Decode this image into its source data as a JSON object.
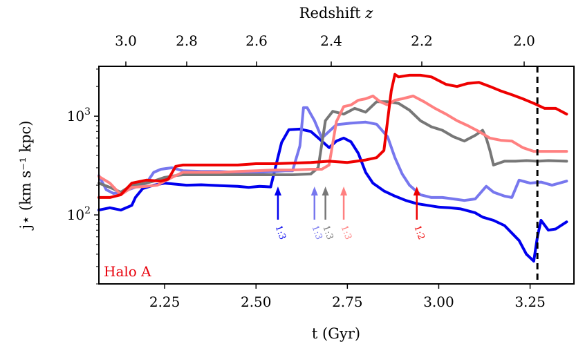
{
  "chart_data": {
    "type": "line",
    "title": "",
    "xlabel": "t (Gyr)",
    "ylabel": "j⋆ (km s⁻¹ kpc)",
    "top_axis_label": "Redshift z",
    "xlim": [
      2.07,
      3.37
    ],
    "ylim": [
      20,
      3200
    ],
    "yscale": "log",
    "x_ticks": [
      2.25,
      2.5,
      2.75,
      3.0,
      3.25
    ],
    "x_tick_labels": [
      "2.25",
      "2.50",
      "2.75",
      "3.00",
      "3.25"
    ],
    "y_ticks": [
      100,
      1000
    ],
    "y_tick_base": "10",
    "y_tick_exponents": [
      "2",
      "3"
    ],
    "top_ticks": [
      {
        "t": 2.105,
        "label": "3.0"
      },
      {
        "t": 2.195,
        "label": "2.8"
      },
      {
        "t": 2.29,
        "label": "2.6"
      },
      {
        "t": 2.395,
        "label": "2.4"
      },
      {
        "t": 2.51,
        "label": "2.2"
      },
      {
        "t": 2.635,
        "label": "2.0"
      }
    ],
    "vline_x": 3.27,
    "halo_label": "Halo A",
    "halo_label_color": "#e8000b",
    "series": [
      {
        "color": "#0000ee",
        "x": [
          2.07,
          2.1,
          2.13,
          2.16,
          2.17,
          2.19,
          2.22,
          2.25,
          2.28,
          2.31,
          2.35,
          2.4,
          2.45,
          2.48,
          2.51,
          2.54,
          2.57,
          2.59,
          2.62,
          2.65,
          2.68,
          2.7,
          2.72,
          2.74,
          2.76,
          2.78,
          2.8,
          2.82,
          2.85,
          2.88,
          2.91,
          2.94,
          2.97,
          3.0,
          3.03,
          3.06,
          3.08,
          3.1,
          3.12,
          3.15,
          3.18,
          3.22,
          3.24,
          3.26,
          3.27,
          3.28,
          3.3,
          3.32,
          3.35
        ],
        "y": [
          112,
          118,
          112,
          125,
          150,
          185,
          200,
          210,
          205,
          200,
          202,
          198,
          195,
          190,
          195,
          192,
          540,
          730,
          740,
          700,
          560,
          480,
          560,
          600,
          550,
          420,
          270,
          210,
          175,
          155,
          140,
          130,
          125,
          120,
          118,
          115,
          110,
          105,
          95,
          88,
          78,
          55,
          40,
          34,
          60,
          88,
          70,
          72,
          85
        ]
      },
      {
        "color": "#7777ee",
        "x": [
          2.07,
          2.09,
          2.11,
          2.13,
          2.16,
          2.2,
          2.22,
          2.24,
          2.27,
          2.3,
          2.35,
          2.4,
          2.45,
          2.5,
          2.55,
          2.58,
          2.6,
          2.62,
          2.63,
          2.64,
          2.66,
          2.68,
          2.72,
          2.76,
          2.8,
          2.83,
          2.86,
          2.88,
          2.9,
          2.92,
          2.95,
          2.98,
          3.01,
          3.04,
          3.07,
          3.1,
          3.13,
          3.15,
          3.18,
          3.2,
          3.22,
          3.25,
          3.28,
          3.31,
          3.35
        ],
        "y": [
          250,
          180,
          165,
          170,
          185,
          210,
          270,
          290,
          300,
          280,
          275,
          275,
          270,
          270,
          275,
          280,
          280,
          500,
          1220,
          1220,
          900,
          600,
          820,
          850,
          870,
          830,
          620,
          380,
          260,
          200,
          160,
          150,
          150,
          145,
          140,
          145,
          195,
          170,
          155,
          150,
          225,
          210,
          215,
          200,
          220
        ]
      },
      {
        "color": "#777777",
        "x": [
          2.07,
          2.1,
          2.13,
          2.16,
          2.2,
          2.22,
          2.25,
          2.28,
          2.3,
          2.35,
          2.4,
          2.45,
          2.5,
          2.55,
          2.6,
          2.65,
          2.67,
          2.69,
          2.71,
          2.74,
          2.77,
          2.8,
          2.83,
          2.86,
          2.89,
          2.92,
          2.95,
          2.98,
          3.01,
          3.04,
          3.07,
          3.1,
          3.12,
          3.13,
          3.14,
          3.15,
          3.18,
          3.21,
          3.24,
          3.27,
          3.3,
          3.35
        ],
        "y": [
          210,
          190,
          170,
          200,
          210,
          220,
          240,
          250,
          255,
          255,
          255,
          255,
          255,
          255,
          255,
          260,
          300,
          900,
          1120,
          1050,
          1200,
          1100,
          1400,
          1400,
          1350,
          1150,
          900,
          780,
          720,
          620,
          560,
          640,
          720,
          600,
          450,
          320,
          350,
          350,
          355,
          350,
          355,
          350
        ]
      },
      {
        "color": "#ff8080",
        "x": [
          2.07,
          2.1,
          2.13,
          2.16,
          2.2,
          2.23,
          2.25,
          2.27,
          2.3,
          2.35,
          2.4,
          2.45,
          2.5,
          2.55,
          2.6,
          2.65,
          2.68,
          2.7,
          2.72,
          2.74,
          2.76,
          2.78,
          2.8,
          2.82,
          2.84,
          2.86,
          2.88,
          2.9,
          2.93,
          2.96,
          2.99,
          3.02,
          3.05,
          3.08,
          3.11,
          3.14,
          3.17,
          3.2,
          3.23,
          3.26,
          3.3,
          3.35
        ],
        "y": [
          245,
          210,
          160,
          190,
          195,
          200,
          220,
          240,
          270,
          270,
          270,
          275,
          280,
          285,
          285,
          290,
          290,
          320,
          880,
          1250,
          1300,
          1450,
          1500,
          1600,
          1400,
          1300,
          1450,
          1500,
          1600,
          1400,
          1200,
          1050,
          900,
          800,
          700,
          600,
          570,
          560,
          480,
          440,
          440,
          440
        ]
      },
      {
        "color": "#ee0000",
        "x": [
          2.07,
          2.1,
          2.13,
          2.16,
          2.2,
          2.24,
          2.26,
          2.28,
          2.3,
          2.35,
          2.4,
          2.45,
          2.5,
          2.55,
          2.6,
          2.65,
          2.7,
          2.75,
          2.8,
          2.83,
          2.85,
          2.87,
          2.88,
          2.89,
          2.92,
          2.95,
          2.98,
          3.02,
          3.05,
          3.08,
          3.11,
          3.14,
          3.17,
          3.2,
          3.23,
          3.26,
          3.29,
          3.32,
          3.35
        ],
        "y": [
          150,
          150,
          160,
          210,
          225,
          220,
          230,
          310,
          320,
          320,
          320,
          320,
          330,
          330,
          335,
          340,
          350,
          340,
          360,
          380,
          450,
          1800,
          2650,
          2500,
          2600,
          2600,
          2500,
          2100,
          2000,
          2150,
          2200,
          2000,
          1800,
          1650,
          1500,
          1350,
          1200,
          1200,
          1050
        ]
      }
    ],
    "arrows": [
      {
        "x": 2.56,
        "label": "1:3",
        "color": "#0000ee"
      },
      {
        "x": 2.66,
        "label": "1:3",
        "color": "#7777ee"
      },
      {
        "x": 2.69,
        "label": "1:3",
        "color": "#777777"
      },
      {
        "x": 2.74,
        "label": "1:3",
        "color": "#ff8080"
      },
      {
        "x": 2.94,
        "label": "1:2",
        "color": "#ee0000"
      }
    ]
  }
}
